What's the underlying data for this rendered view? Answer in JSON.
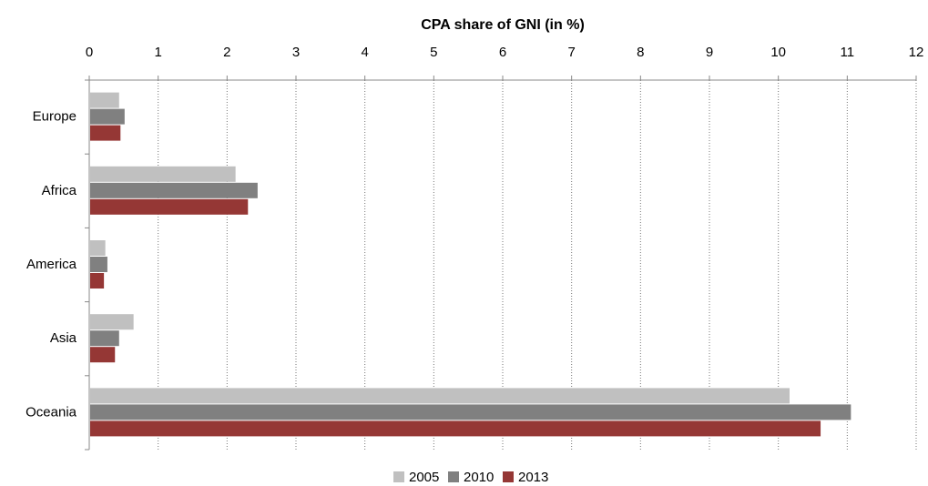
{
  "chart_data": {
    "type": "bar",
    "orientation": "horizontal",
    "title": "CPA share of GNI (in %)",
    "categories": [
      "Europe",
      "Africa",
      "America",
      "Asia",
      "Oceania"
    ],
    "series": [
      {
        "name": "2005",
        "color": "#c0c0c0",
        "values": [
          0.42,
          2.11,
          0.22,
          0.63,
          10.15
        ]
      },
      {
        "name": "2010",
        "color": "#808080",
        "values": [
          0.5,
          2.43,
          0.25,
          0.42,
          11.04
        ]
      },
      {
        "name": "2013",
        "color": "#953735",
        "values": [
          0.44,
          2.29,
          0.2,
          0.36,
          10.6
        ]
      }
    ],
    "xlim": [
      0,
      12
    ],
    "xticks": [
      0,
      1,
      2,
      3,
      4,
      5,
      6,
      7,
      8,
      9,
      10,
      11,
      12
    ],
    "grid": true,
    "legend": "bottom"
  }
}
